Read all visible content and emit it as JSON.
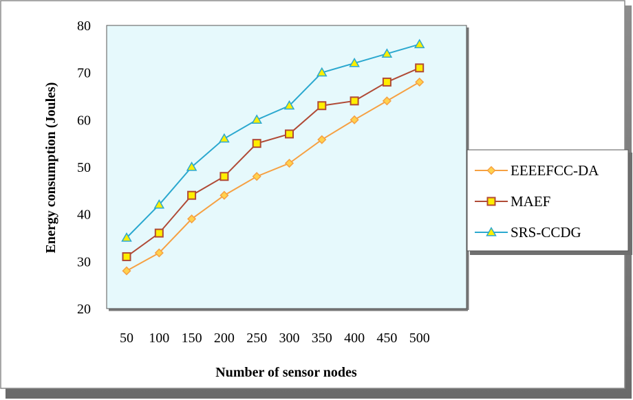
{
  "chart_data": {
    "type": "line",
    "title": "",
    "xlabel": "Number of sensor nodes",
    "ylabel": "Energy consumption  (Joules)",
    "categories": [
      "50",
      "100",
      "150",
      "200",
      "250",
      "300",
      "350",
      "400",
      "450",
      "500"
    ],
    "ylim": [
      20,
      80
    ],
    "yticks": [
      20,
      30,
      40,
      50,
      60,
      70,
      80
    ],
    "grid": false,
    "legend_position": "right",
    "plot_background": "#e6f9fc",
    "series": [
      {
        "name": "EEEEFCC-DA",
        "color": "#f6a042",
        "marker": "diamond",
        "marker_fill": "#ffd24d",
        "values": [
          28,
          31.8,
          39,
          44,
          48,
          50.8,
          55.8,
          60,
          64,
          68
        ]
      },
      {
        "name": "MAEF",
        "color": "#b04a36",
        "marker": "square",
        "marker_fill": "#ffee00",
        "values": [
          31,
          36,
          44,
          48,
          55,
          57,
          63,
          64,
          68,
          71
        ]
      },
      {
        "name": "SRS-CCDG",
        "color": "#2aa8cf",
        "marker": "triangle",
        "marker_fill": "#ffee00",
        "values": [
          35,
          42,
          50,
          56,
          60,
          63,
          70,
          72,
          74,
          76
        ]
      }
    ]
  }
}
